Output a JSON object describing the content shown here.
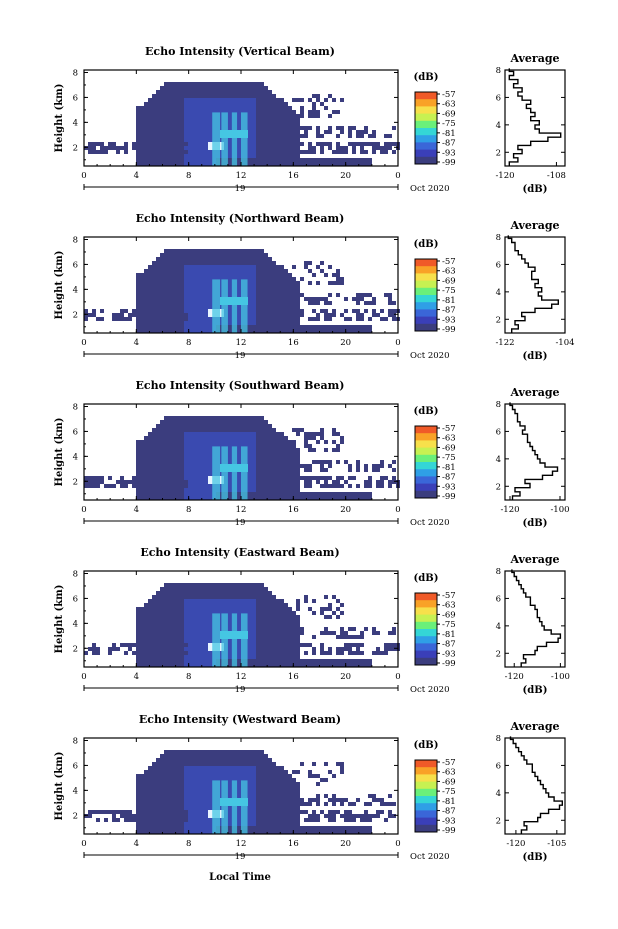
{
  "figure": {
    "x_axis_label": "Local Time",
    "colorbar_unit": "(dB)",
    "colorbar_ticks": [
      "-57",
      "-63",
      "-69",
      "-75",
      "-81",
      "-87",
      "-93",
      "-99"
    ],
    "colorbar_colors": [
      "#f05a28",
      "#f9a227",
      "#f7e04b",
      "#c7f152",
      "#6af07a",
      "#34d6d6",
      "#2f9fe6",
      "#3a66d8",
      "#3a3fb8",
      "#3b3d7e"
    ],
    "palette": {
      "background_echo": "#3b3d7e",
      "moderate_echo": "#3a4ab0",
      "strong_echo": "#46c6e3",
      "peak_echo": "#e8f5ff"
    }
  },
  "chart_data": [
    {
      "type": "heatmap",
      "title": "Echo Intensity (Vertical Beam)",
      "ylabel": "Height (km)",
      "xlabel": "Local Time",
      "x_ticks": [
        "0",
        "4",
        "8",
        "12",
        "16",
        "20",
        "0"
      ],
      "x_range": [
        0,
        24
      ],
      "y_ticks": [
        "2",
        "4",
        "6",
        "8"
      ],
      "y_range": [
        0.5,
        8.2
      ],
      "date_label": "19",
      "date_suffix": "Oct 2020",
      "colorbar": {
        "unit": "(dB)",
        "ticks": [
          "-57",
          "-63",
          "-69",
          "-75",
          "-81",
          "-87",
          "-93",
          "-99"
        ]
      },
      "profile": {
        "title": "Average",
        "xlabel": "(dB)",
        "x_ticks": [
          "-120",
          "-108"
        ],
        "x_range": [
          -120,
          -106
        ],
        "y_ticks": [
          "2",
          "4",
          "6",
          "8"
        ],
        "y_range": [
          1,
          8
        ],
        "height_km": [
          1.0,
          1.3,
          1.6,
          1.9,
          2.2,
          2.5,
          2.8,
          3.1,
          3.4,
          3.7,
          4.0,
          4.3,
          4.6,
          4.9,
          5.2,
          5.5,
          5.8,
          6.1,
          6.4,
          6.7,
          7.0,
          7.3,
          7.6,
          7.9
        ],
        "values": [
          -119,
          -117,
          -118,
          -116,
          -117,
          -114,
          -110,
          -107,
          -112,
          -113,
          -112,
          -114,
          -113,
          -114,
          -115,
          -114,
          -116,
          -117,
          -116,
          -118,
          -117,
          -119,
          -118,
          -119
        ]
      }
    },
    {
      "type": "heatmap",
      "title": "Echo Intensity (Northward Beam)",
      "ylabel": "Height (km)",
      "xlabel": "Local Time",
      "x_ticks": [
        "0",
        "4",
        "8",
        "12",
        "16",
        "20",
        "0"
      ],
      "x_range": [
        0,
        24
      ],
      "y_ticks": [
        "2",
        "4",
        "6",
        "8"
      ],
      "y_range": [
        0.5,
        8.2
      ],
      "date_label": "19",
      "date_suffix": "Oct 2020",
      "colorbar": {
        "unit": "(dB)",
        "ticks": [
          "-57",
          "-63",
          "-69",
          "-75",
          "-81",
          "-87",
          "-93",
          "-99"
        ]
      },
      "profile": {
        "title": "Average",
        "xlabel": "(dB)",
        "x_ticks": [
          "-122",
          "-104"
        ],
        "x_range": [
          -122,
          -104
        ],
        "y_ticks": [
          "2",
          "4",
          "6",
          "8"
        ],
        "y_range": [
          1,
          8
        ],
        "height_km": [
          1.0,
          1.3,
          1.6,
          1.9,
          2.2,
          2.5,
          2.8,
          3.1,
          3.4,
          3.7,
          4.0,
          4.3,
          4.6,
          4.9,
          5.2,
          5.5,
          5.8,
          6.1,
          6.4,
          6.7,
          7.0,
          7.3,
          7.6,
          7.9
        ],
        "values": [
          -120,
          -118,
          -119,
          -116,
          -117,
          -113,
          -108,
          -106,
          -111,
          -112,
          -111,
          -113,
          -112,
          -114,
          -114,
          -113,
          -115,
          -116,
          -117,
          -118,
          -119,
          -119,
          -120,
          -121
        ]
      }
    },
    {
      "type": "heatmap",
      "title": "Echo Intensity (Southward Beam)",
      "ylabel": "Height (km)",
      "xlabel": "Local Time",
      "x_ticks": [
        "0",
        "4",
        "8",
        "12",
        "16",
        "20",
        "0"
      ],
      "x_range": [
        0,
        24
      ],
      "y_ticks": [
        "2",
        "4",
        "6",
        "8"
      ],
      "y_range": [
        0.5,
        8.2
      ],
      "date_label": "19",
      "date_suffix": "Oct 2020",
      "colorbar": {
        "unit": "(dB)",
        "ticks": [
          "-57",
          "-63",
          "-69",
          "-75",
          "-81",
          "-87",
          "-93",
          "-99"
        ]
      },
      "profile": {
        "title": "Average",
        "xlabel": "(dB)",
        "x_ticks": [
          "-120",
          "-100"
        ],
        "x_range": [
          -122,
          -98
        ],
        "y_ticks": [
          "2",
          "4",
          "6",
          "8"
        ],
        "y_range": [
          1,
          8
        ],
        "height_km": [
          1.0,
          1.3,
          1.6,
          1.9,
          2.2,
          2.5,
          2.8,
          3.1,
          3.4,
          3.7,
          4.0,
          4.3,
          4.6,
          4.9,
          5.2,
          5.5,
          5.8,
          6.1,
          6.4,
          6.7,
          7.0,
          7.3,
          7.6,
          7.9
        ],
        "values": [
          -119,
          -116,
          -118,
          -112,
          -114,
          -107,
          -103,
          -101,
          -106,
          -108,
          -109,
          -110,
          -111,
          -112,
          -113,
          -113,
          -115,
          -114,
          -116,
          -117,
          -117,
          -118,
          -119,
          -120
        ]
      }
    },
    {
      "type": "heatmap",
      "title": "Echo Intensity (Eastward Beam)",
      "ylabel": "Height (km)",
      "xlabel": "Local Time",
      "x_ticks": [
        "0",
        "4",
        "8",
        "12",
        "16",
        "20",
        "0"
      ],
      "x_range": [
        0,
        24
      ],
      "y_ticks": [
        "2",
        "4",
        "6",
        "8"
      ],
      "y_range": [
        0.5,
        8.2
      ],
      "date_label": "19",
      "date_suffix": "Oct 2020",
      "colorbar": {
        "unit": "(dB)",
        "ticks": [
          "-57",
          "-63",
          "-69",
          "-75",
          "-81",
          "-87",
          "-93",
          "-99"
        ]
      },
      "profile": {
        "title": "Average",
        "xlabel": "(dB)",
        "x_ticks": [
          "-120",
          "-100"
        ],
        "x_range": [
          -124,
          -98
        ],
        "y_ticks": [
          "2",
          "4",
          "6",
          "8"
        ],
        "y_range": [
          1,
          8
        ],
        "height_km": [
          1.0,
          1.3,
          1.6,
          1.9,
          2.2,
          2.5,
          2.8,
          3.1,
          3.4,
          3.7,
          4.0,
          4.3,
          4.6,
          4.9,
          5.2,
          5.5,
          5.8,
          6.1,
          6.4,
          6.7,
          7.0,
          7.3,
          7.6,
          7.9
        ],
        "values": [
          -117,
          -115,
          -116,
          -111,
          -110,
          -106,
          -101,
          -100,
          -104,
          -107,
          -108,
          -109,
          -110,
          -110,
          -111,
          -113,
          -113,
          -115,
          -116,
          -117,
          -118,
          -119,
          -120,
          -121
        ]
      }
    },
    {
      "type": "heatmap",
      "title": "Echo Intensity (Westward Beam)",
      "ylabel": "Height (km)",
      "xlabel": "Local Time",
      "x_ticks": [
        "0",
        "4",
        "8",
        "12",
        "16",
        "20",
        "0"
      ],
      "x_range": [
        0,
        24
      ],
      "y_ticks": [
        "2",
        "4",
        "6",
        "8"
      ],
      "y_range": [
        0.5,
        8.2
      ],
      "date_label": "19",
      "date_suffix": "Oct 2020",
      "colorbar": {
        "unit": "(dB)",
        "ticks": [
          "-57",
          "-63",
          "-69",
          "-75",
          "-81",
          "-87",
          "-93",
          "-99"
        ]
      },
      "profile": {
        "title": "Average",
        "xlabel": "(dB)",
        "x_ticks": [
          "-120",
          "-105"
        ],
        "x_range": [
          -124,
          -102
        ],
        "y_ticks": [
          "2",
          "4",
          "6",
          "8"
        ],
        "y_range": [
          1,
          8
        ],
        "height_km": [
          1.0,
          1.3,
          1.6,
          1.9,
          2.2,
          2.5,
          2.8,
          3.1,
          3.4,
          3.7,
          4.0,
          4.3,
          4.6,
          4.9,
          5.2,
          5.5,
          5.8,
          6.1,
          6.4,
          6.7,
          7.0,
          7.3,
          7.6,
          7.9
        ],
        "values": [
          -118,
          -116,
          -117,
          -112,
          -111,
          -108,
          -104,
          -103,
          -106,
          -108,
          -109,
          -110,
          -111,
          -112,
          -113,
          -114,
          -114,
          -116,
          -117,
          -118,
          -119,
          -120,
          -121,
          -122
        ]
      }
    }
  ]
}
